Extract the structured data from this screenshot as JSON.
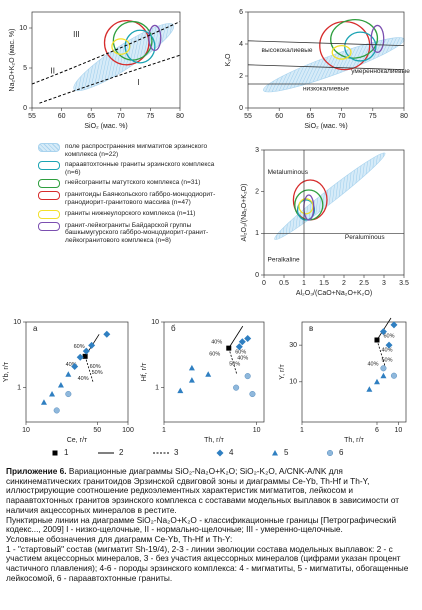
{
  "chart_data": [
    {
      "type": "field",
      "xlabel": "SiO₂ (мас. %)",
      "ylabel": "Na₂O+K₂O (мас. %)",
      "xlim": [
        55,
        80
      ],
      "xticks": [
        55,
        60,
        65,
        70,
        75,
        80
      ],
      "ylim": [
        0,
        12
      ],
      "yticks": [
        0,
        5,
        10
      ],
      "annotations": [
        "III",
        "II",
        "I"
      ]
    },
    {
      "type": "field",
      "xlabel": "SiO₂ (мас. %)",
      "ylabel": "K₂O",
      "xlim": [
        55,
        80
      ],
      "xticks": [
        55,
        60,
        65,
        70,
        75,
        80
      ],
      "ylim": [
        0,
        6
      ],
      "yticks": [
        0,
        2,
        4,
        6
      ],
      "annotations": [
        "высококалиевые",
        "умереннокалиевые",
        "низкокалиевые"
      ]
    },
    {
      "type": "field",
      "xlabel": "Al₂O₃/(CaO+Na₂O+K₂O)",
      "ylabel": "Al₂O₃/(Na₂O+K₂O)",
      "xlim": [
        0,
        3.5
      ],
      "xticks": [
        0,
        0.5,
        1,
        1.5,
        2,
        2.5,
        3,
        3.5
      ],
      "ylim": [
        0,
        3
      ],
      "yticks": [
        0,
        1,
        2,
        3
      ],
      "annotations": [
        "Metaluminous",
        "Peraluminous",
        "Peralkaline"
      ]
    },
    {
      "type": "scatter",
      "label": "а",
      "xlabel": "Ce, г/т",
      "ylabel": "Yb, г/т",
      "xlog": true,
      "ylog": true,
      "xlim": [
        10,
        100
      ],
      "xticks": [
        10,
        50,
        100
      ],
      "ylim": [
        0.3,
        10
      ],
      "yticks": [
        1,
        10
      ],
      "series": [
        {
          "marker": "square",
          "color": "#000000",
          "x": [
            38
          ],
          "values": [
            3
          ]
        },
        {
          "marker": "diamond",
          "color": "#2f7fc1",
          "x": [
            62,
            44,
            39,
            34,
            30
          ],
          "values": [
            6.5,
            4.4,
            3.6,
            2.9,
            2.1
          ]
        },
        {
          "marker": "triangle",
          "color": "#2f7fc1",
          "x": [
            15,
            18,
            22,
            26
          ],
          "values": [
            0.6,
            0.8,
            1.1,
            1.6
          ]
        },
        {
          "marker": "circle",
          "color": "#8fb8dc",
          "x": [
            20,
            26
          ],
          "values": [
            0.45,
            0.8
          ]
        }
      ],
      "annotations": [
        "60%",
        "40%",
        "60%",
        "50%",
        "40%"
      ]
    },
    {
      "type": "scatter",
      "label": "б",
      "xlabel": "Th, г/т",
      "ylabel": "Hf, г/т",
      "xlog": true,
      "ylog": true,
      "xlim": [
        1,
        12
      ],
      "xticks": [
        1,
        10
      ],
      "ylim": [
        0.3,
        10
      ],
      "yticks": [
        1,
        10
      ],
      "series": [
        {
          "marker": "square",
          "color": "#000000",
          "x": [
            5
          ],
          "values": [
            4
          ]
        },
        {
          "marker": "diamond",
          "color": "#2f7fc1",
          "x": [
            7,
            8,
            6.5
          ],
          "values": [
            5,
            5.6,
            4.2
          ]
        },
        {
          "marker": "triangle",
          "color": "#2f7fc1",
          "x": [
            2,
            2,
            3,
            1.5
          ],
          "values": [
            2,
            1.3,
            1.6,
            0.9
          ]
        },
        {
          "marker": "circle",
          "color": "#8fb8dc",
          "x": [
            6,
            8,
            9
          ],
          "values": [
            1,
            1.5,
            0.8
          ]
        }
      ],
      "annotations": [
        "40%",
        "60%",
        "60%",
        "40%",
        "50%"
      ]
    },
    {
      "type": "scatter",
      "label": "в",
      "xlabel": "Th, г/т",
      "ylabel": "Y, г/т",
      "xlog": true,
      "ylog": true,
      "xlim": [
        1,
        12
      ],
      "xticks": [
        1,
        6,
        10
      ],
      "ylim": [
        3,
        60
      ],
      "yticks": [
        10,
        30
      ],
      "series": [
        {
          "marker": "square",
          "color": "#000000",
          "x": [
            6
          ],
          "values": [
            35
          ]
        },
        {
          "marker": "diamond",
          "color": "#2f7fc1",
          "x": [
            9,
            7,
            8
          ],
          "values": [
            55,
            45,
            30
          ]
        },
        {
          "marker": "triangle",
          "color": "#2f7fc1",
          "x": [
            5,
            6,
            7
          ],
          "values": [
            8,
            10,
            12
          ]
        },
        {
          "marker": "circle",
          "color": "#8fb8dc",
          "x": [
            9,
            7
          ],
          "values": [
            12,
            15
          ]
        }
      ],
      "annotations": [
        "60%",
        "40%",
        "50%",
        "40%"
      ]
    }
  ],
  "legend": {
    "items": [
      {
        "name": "поле распространения мигматитов эрзинского комплекса (n=22)",
        "color": "#a9d3ee"
      },
      {
        "name": "параавтохтонные граниты эрзинского комплекса (n=6)",
        "color": "#1aa3b3"
      },
      {
        "name": "гнейсограниты матутского комплекса (n=31)",
        "color": "#2e9e3e"
      },
      {
        "name": "гранитоиды Баянкольского габбро-монцодиорит-гранодиорит-гранитового массива (n=47)",
        "color": "#d62b2b"
      },
      {
        "name": "граниты нижнеулорского комплекса (n=11)",
        "color": "#f2e02a"
      },
      {
        "name": "гранит-лейкограниты Байдарской группы башкымугурского габбро-монцодиорит-гранит-лейкогранитового комплекса (n=8)",
        "color": "#7b4fb0"
      }
    ]
  },
  "symbol_legend": {
    "items": [
      "1",
      "2",
      "3",
      "4",
      "5",
      "6"
    ]
  },
  "caption": {
    "label": "Приложение 6.",
    "paragraphs": [
      "Вариационные диаграммы SiO₂-Na₂O+K₂O; SiO₂-K₂O, A/CNK-A/NK для синкинематических гранитоидов Эрзинской сдвиговой зоны и диаграммы Ce-Yb, Th-Hf и Th-Y, иллюстрирующие соотношение редкоэлементных характеристик мигматитов, лейкосом и параавтохтонных гранитов эрзинского комплекса с составами модельных выплавок в зависимости от наличия акцессорных минералов в рестите.",
      "Пунктирные линии на диаграмме SiO₂-Na₂O+K₂O - классификационные границы [Петрографический кодекс..., 2009] I - низко-щелочные, II - нормально-щелочные; III - умеренно-щелочные.",
      "Условные обозначения для диаграмм Ce-Yb, Th-Hf и Th-Y:",
      "1 - \"стартовый\" состав (мигматит Sh-19/4), 2-3 - линии эволюции состава модельных выплавок: 2 - с участием акцессорных минералов, 3 - без участия акцессорных минералов (цифрами указан процент частичного плавления); 4-6 - породы эрзинского комплекса: 4 - мигматиты, 5 - мигматиты, обогащенные лейкосомой, 6 - параавтохтонные граниты."
    ]
  }
}
